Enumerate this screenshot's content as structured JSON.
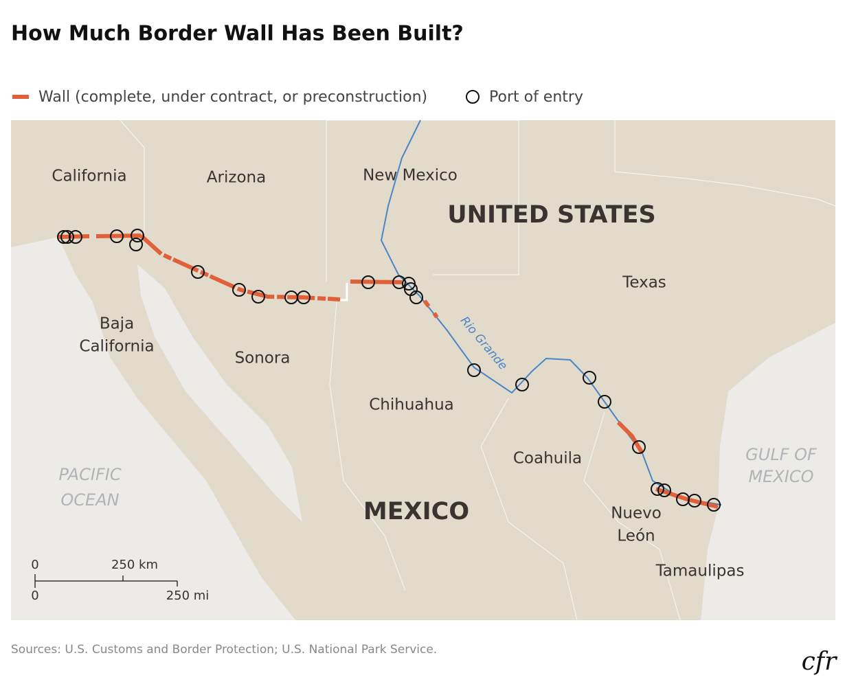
{
  "header": {
    "title": "How Much Border Wall Has Been Built?"
  },
  "legend": {
    "items": [
      "Wall (complete, under contract, or preconstruction)",
      "Port of entry"
    ]
  },
  "map": {
    "countries": [
      "UNITED STATES",
      "MEXICO"
    ],
    "regions": [
      "California",
      "Arizona",
      "New Mexico",
      "Texas",
      [
        "Baja",
        "California"
      ],
      "Sonora",
      "Chihuahua",
      "Coahuila",
      [
        "Nuevo",
        "León"
      ],
      "Tamaulipas"
    ],
    "water": [
      [
        "PACIFIC",
        "OCEAN"
      ],
      [
        "GULF OF",
        "MEXICO"
      ]
    ],
    "river": "Rio Grande",
    "scale": {
      "km": [
        "0",
        "250 km"
      ],
      "mi": [
        "0",
        "250 mi"
      ]
    }
  },
  "footer": {
    "source": "Sources:  U.S. Customs and Border Protection; U.S. National Park Service.",
    "logo": "cfr"
  }
}
